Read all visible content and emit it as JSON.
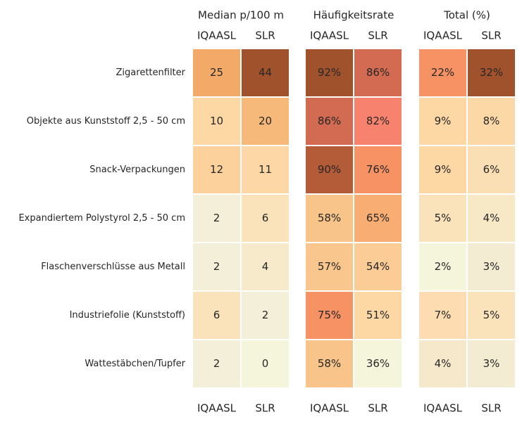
{
  "chart_data": {
    "type": "heatmap",
    "rows": [
      "Zigarettenfilter",
      "Objekte aus Kunststoff 2,5 - 50 cm",
      "Snack-Verpackungen",
      "Expandiertem Polystyrol 2,5 - 50 cm",
      "Flaschenverschlüsse aus Metall",
      "Industriefolie (Kunststoff)",
      "Wattestäbchen/Tupfer"
    ],
    "panels": [
      {
        "title": "Median p/100 m",
        "columns": [
          "IQAASL",
          "SLR"
        ],
        "values": [
          [
            25,
            44
          ],
          [
            10,
            20
          ],
          [
            12,
            11
          ],
          [
            2,
            6
          ],
          [
            2,
            4
          ],
          [
            6,
            2
          ],
          [
            2,
            0
          ]
        ],
        "labels": [
          [
            "25",
            "44"
          ],
          [
            "10",
            "20"
          ],
          [
            "12",
            "11"
          ],
          [
            "2",
            "6"
          ],
          [
            "2",
            "4"
          ],
          [
            "6",
            "2"
          ],
          [
            "2",
            "0"
          ]
        ],
        "colors": [
          [
            "#f3a968",
            "#a0522d"
          ],
          [
            "#fdd7a4",
            "#f7b97a"
          ],
          [
            "#fcd19b",
            "#fdd7a5"
          ],
          [
            "#f4efd8",
            "#fae3bb"
          ],
          [
            "#f4efd8",
            "#f6eacb"
          ],
          [
            "#fae3bb",
            "#f4efd8"
          ],
          [
            "#f4efd8",
            "#f5f5dc"
          ]
        ]
      },
      {
        "title": "Häufigkeitsrate",
        "columns": [
          "IQAASL",
          "SLR"
        ],
        "values": [
          [
            92,
            86
          ],
          [
            86,
            82
          ],
          [
            90,
            76
          ],
          [
            58,
            65
          ],
          [
            57,
            54
          ],
          [
            75,
            51
          ],
          [
            58,
            36
          ]
        ],
        "labels": [
          [
            "92%",
            "86%"
          ],
          [
            "86%",
            "82%"
          ],
          [
            "90%",
            "76%"
          ],
          [
            "58%",
            "65%"
          ],
          [
            "57%",
            "54%"
          ],
          [
            "75%",
            "51%"
          ],
          [
            "58%",
            "36%"
          ]
        ],
        "colors": [
          [
            "#a0522d",
            "#d26b51"
          ],
          [
            "#d26b51",
            "#f7836f"
          ],
          [
            "#b45b38",
            "#f79265"
          ],
          [
            "#f8c48a",
            "#f8ae72"
          ],
          [
            "#f9c68e",
            "#fccc97"
          ],
          [
            "#f79265",
            "#fdd7a4"
          ],
          [
            "#f8c48a",
            "#f5f5dc"
          ]
        ]
      },
      {
        "title": "Total (%)",
        "columns": [
          "IQAASL",
          "SLR"
        ],
        "values": [
          [
            22,
            32
          ],
          [
            9,
            8
          ],
          [
            9,
            6
          ],
          [
            5,
            4
          ],
          [
            2,
            3
          ],
          [
            7,
            5
          ],
          [
            4,
            3
          ]
        ],
        "labels": [
          [
            "22%",
            "32%"
          ],
          [
            "9%",
            "8%"
          ],
          [
            "9%",
            "6%"
          ],
          [
            "5%",
            "4%"
          ],
          [
            "2%",
            "3%"
          ],
          [
            "7%",
            "5%"
          ],
          [
            "4%",
            "3%"
          ]
        ],
        "colors": [
          [
            "#f79265",
            "#a0522d"
          ],
          [
            "#fdd7a4",
            "#fdd8a7"
          ],
          [
            "#fdd7a4",
            "#fbdfb4"
          ],
          [
            "#fae3bb",
            "#f7e8c6"
          ],
          [
            "#f5f5dc",
            "#f4ecd2"
          ],
          [
            "#fcdcb0",
            "#fae3bb"
          ],
          [
            "#f6e8ca",
            "#f4ecd2"
          ]
        ]
      }
    ],
    "text_colors": {
      "dark": "#262626",
      "light": "#ffffff"
    }
  }
}
